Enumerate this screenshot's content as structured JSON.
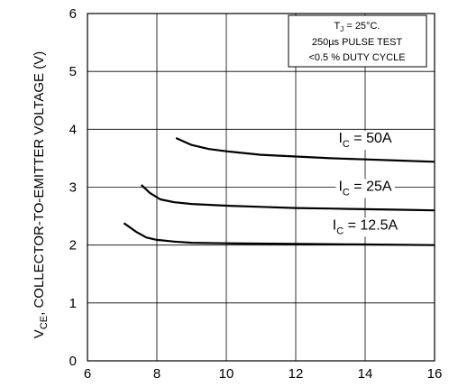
{
  "chart_data": {
    "type": "line",
    "title": "",
    "xlabel": "",
    "ylabel": {
      "main": "V",
      "sub": "CE",
      "rest": ", COLLECTOR-TO-EMITTER VOLTAGE (V)"
    },
    "xlim": [
      6,
      16
    ],
    "ylim": [
      0,
      6
    ],
    "grid": true,
    "x_ticks": [
      "6",
      "8",
      "10",
      "12",
      "14",
      "16"
    ],
    "y_ticks": [
      "0",
      "1",
      "2",
      "3",
      "4",
      "5",
      "6"
    ],
    "annotation": {
      "line1_pre": "T",
      "line1_sub": "J",
      "line1_post": " = 25°C.",
      "line2": "250µs PULSE TEST",
      "line3": "<0.5 % DUTY CYCLE"
    },
    "series": [
      {
        "name": "I_C = 50A",
        "label_main": "I",
        "label_sub": "C",
        "label_post": " = 50A",
        "x": [
          8.55,
          9.0,
          9.5,
          10.0,
          11.0,
          12.0,
          13.0,
          14.0,
          15.0,
          16.0
        ],
        "y": [
          3.85,
          3.73,
          3.66,
          3.62,
          3.56,
          3.53,
          3.5,
          3.48,
          3.46,
          3.44
        ]
      },
      {
        "name": "I_C = 25A",
        "label_main": "I",
        "label_sub": "C",
        "label_post": " = 25A",
        "x": [
          7.55,
          7.8,
          8.1,
          8.5,
          9.0,
          10.0,
          11.0,
          12.0,
          13.0,
          14.0,
          15.0,
          16.0
        ],
        "y": [
          3.04,
          2.9,
          2.79,
          2.74,
          2.71,
          2.68,
          2.66,
          2.64,
          2.63,
          2.62,
          2.61,
          2.6
        ]
      },
      {
        "name": "I_C = 12.5A",
        "label_main": "I",
        "label_sub": "C",
        "label_post": " = 12.5A",
        "x": [
          7.05,
          7.4,
          7.7,
          8.0,
          8.5,
          9.0,
          10.0,
          12.0,
          14.0,
          16.0
        ],
        "y": [
          2.38,
          2.23,
          2.13,
          2.09,
          2.06,
          2.04,
          2.03,
          2.02,
          2.01,
          2.0
        ]
      }
    ]
  }
}
